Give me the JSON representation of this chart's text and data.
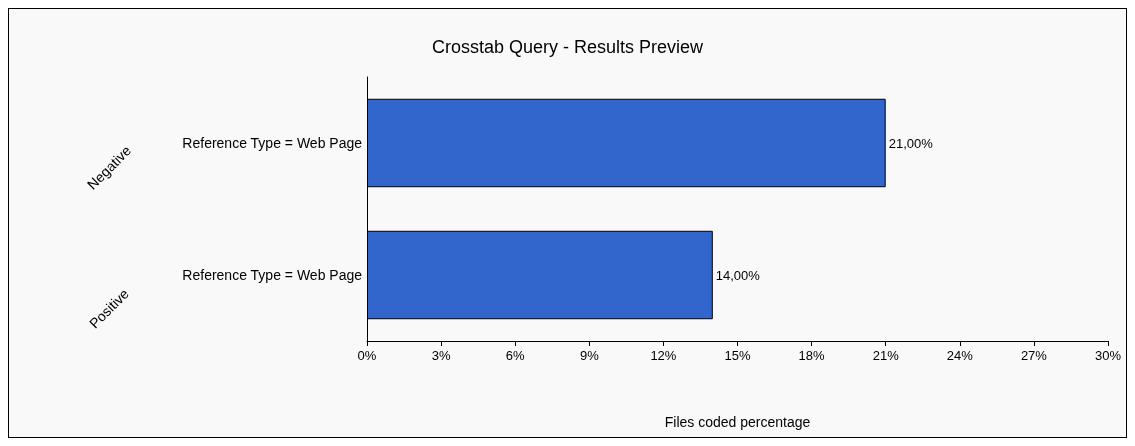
{
  "chart_data": {
    "type": "bar",
    "orientation": "horizontal",
    "title": "Crosstab Query - Results Preview",
    "xlabel": "Files coded percentage",
    "categories": [
      "Reference Type = Web Page",
      "Reference Type = Web Page"
    ],
    "values": [
      21,
      14
    ],
    "value_labels": [
      "21,00%",
      "14,00%"
    ],
    "color": "#3366cc",
    "annotations": [
      "Negative",
      "Positive"
    ],
    "xlim": [
      0,
      30
    ],
    "xticks": [
      {
        "value": 0,
        "label": "0%"
      },
      {
        "value": 3,
        "label": "3%"
      },
      {
        "value": 6,
        "label": "6%"
      },
      {
        "value": 9,
        "label": "9%"
      },
      {
        "value": 12,
        "label": "12%"
      },
      {
        "value": 15,
        "label": "15%"
      },
      {
        "value": 18,
        "label": "18%"
      },
      {
        "value": 21,
        "label": "21%"
      },
      {
        "value": 24,
        "label": "24%"
      },
      {
        "value": 27,
        "label": "27%"
      },
      {
        "value": 30,
        "label": "30%"
      }
    ],
    "grid": false
  }
}
